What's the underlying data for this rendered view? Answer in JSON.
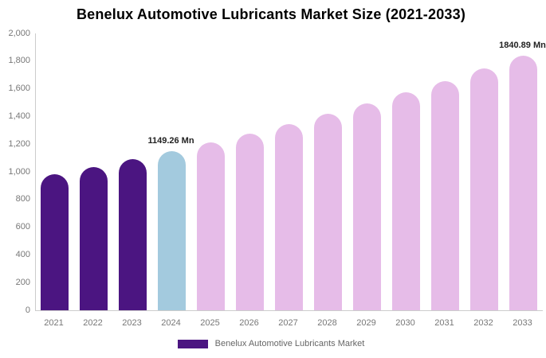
{
  "chart_data": {
    "type": "bar",
    "title": "Benelux Automotive Lubricants Market Size (2021-2033)",
    "categories": [
      "2021",
      "2022",
      "2023",
      "2024",
      "2025",
      "2026",
      "2027",
      "2028",
      "2029",
      "2030",
      "2031",
      "2032",
      "2033"
    ],
    "values": [
      982,
      1035,
      1091,
      1149.26,
      1211,
      1276,
      1345,
      1417,
      1493,
      1574,
      1658,
      1747,
      1840.89
    ],
    "unit": "Mn",
    "xlabel": "",
    "ylabel": "",
    "ylim": [
      0,
      2000
    ],
    "y_tick_values": [
      0,
      200,
      400,
      600,
      800,
      1000,
      1200,
      1400,
      1600,
      1800,
      2000
    ],
    "y_tick_labels": [
      "0",
      "200",
      "400",
      "600",
      "800",
      "1,000",
      "1,200",
      "1,400",
      "1,600",
      "1,800",
      "2,000"
    ],
    "grid": false,
    "legend_position": "bottom",
    "bar_colors": [
      "#4b1581",
      "#4b1581",
      "#4b1581",
      "#a3cade",
      "#e6bce8",
      "#e6bce8",
      "#e6bce8",
      "#e6bce8",
      "#e6bce8",
      "#e6bce8",
      "#e6bce8",
      "#e6bce8",
      "#e6bce8"
    ],
    "annotations": [
      {
        "category": "2024",
        "text": "1149.26 Mn"
      },
      {
        "category": "2033",
        "text": "1840.89 Mn"
      }
    ]
  },
  "legend": {
    "label": "Benelux Automotive Lubricants Market",
    "swatch_color": "#4b1581"
  },
  "colors": {
    "historical_bar": "#4b1581",
    "base_year_bar": "#a3cade",
    "forecast_bar": "#e6bce8",
    "axis_line": "#cccccc",
    "tick_text": "#777777",
    "value_label_text": "#222222",
    "background": "#ffffff"
  }
}
